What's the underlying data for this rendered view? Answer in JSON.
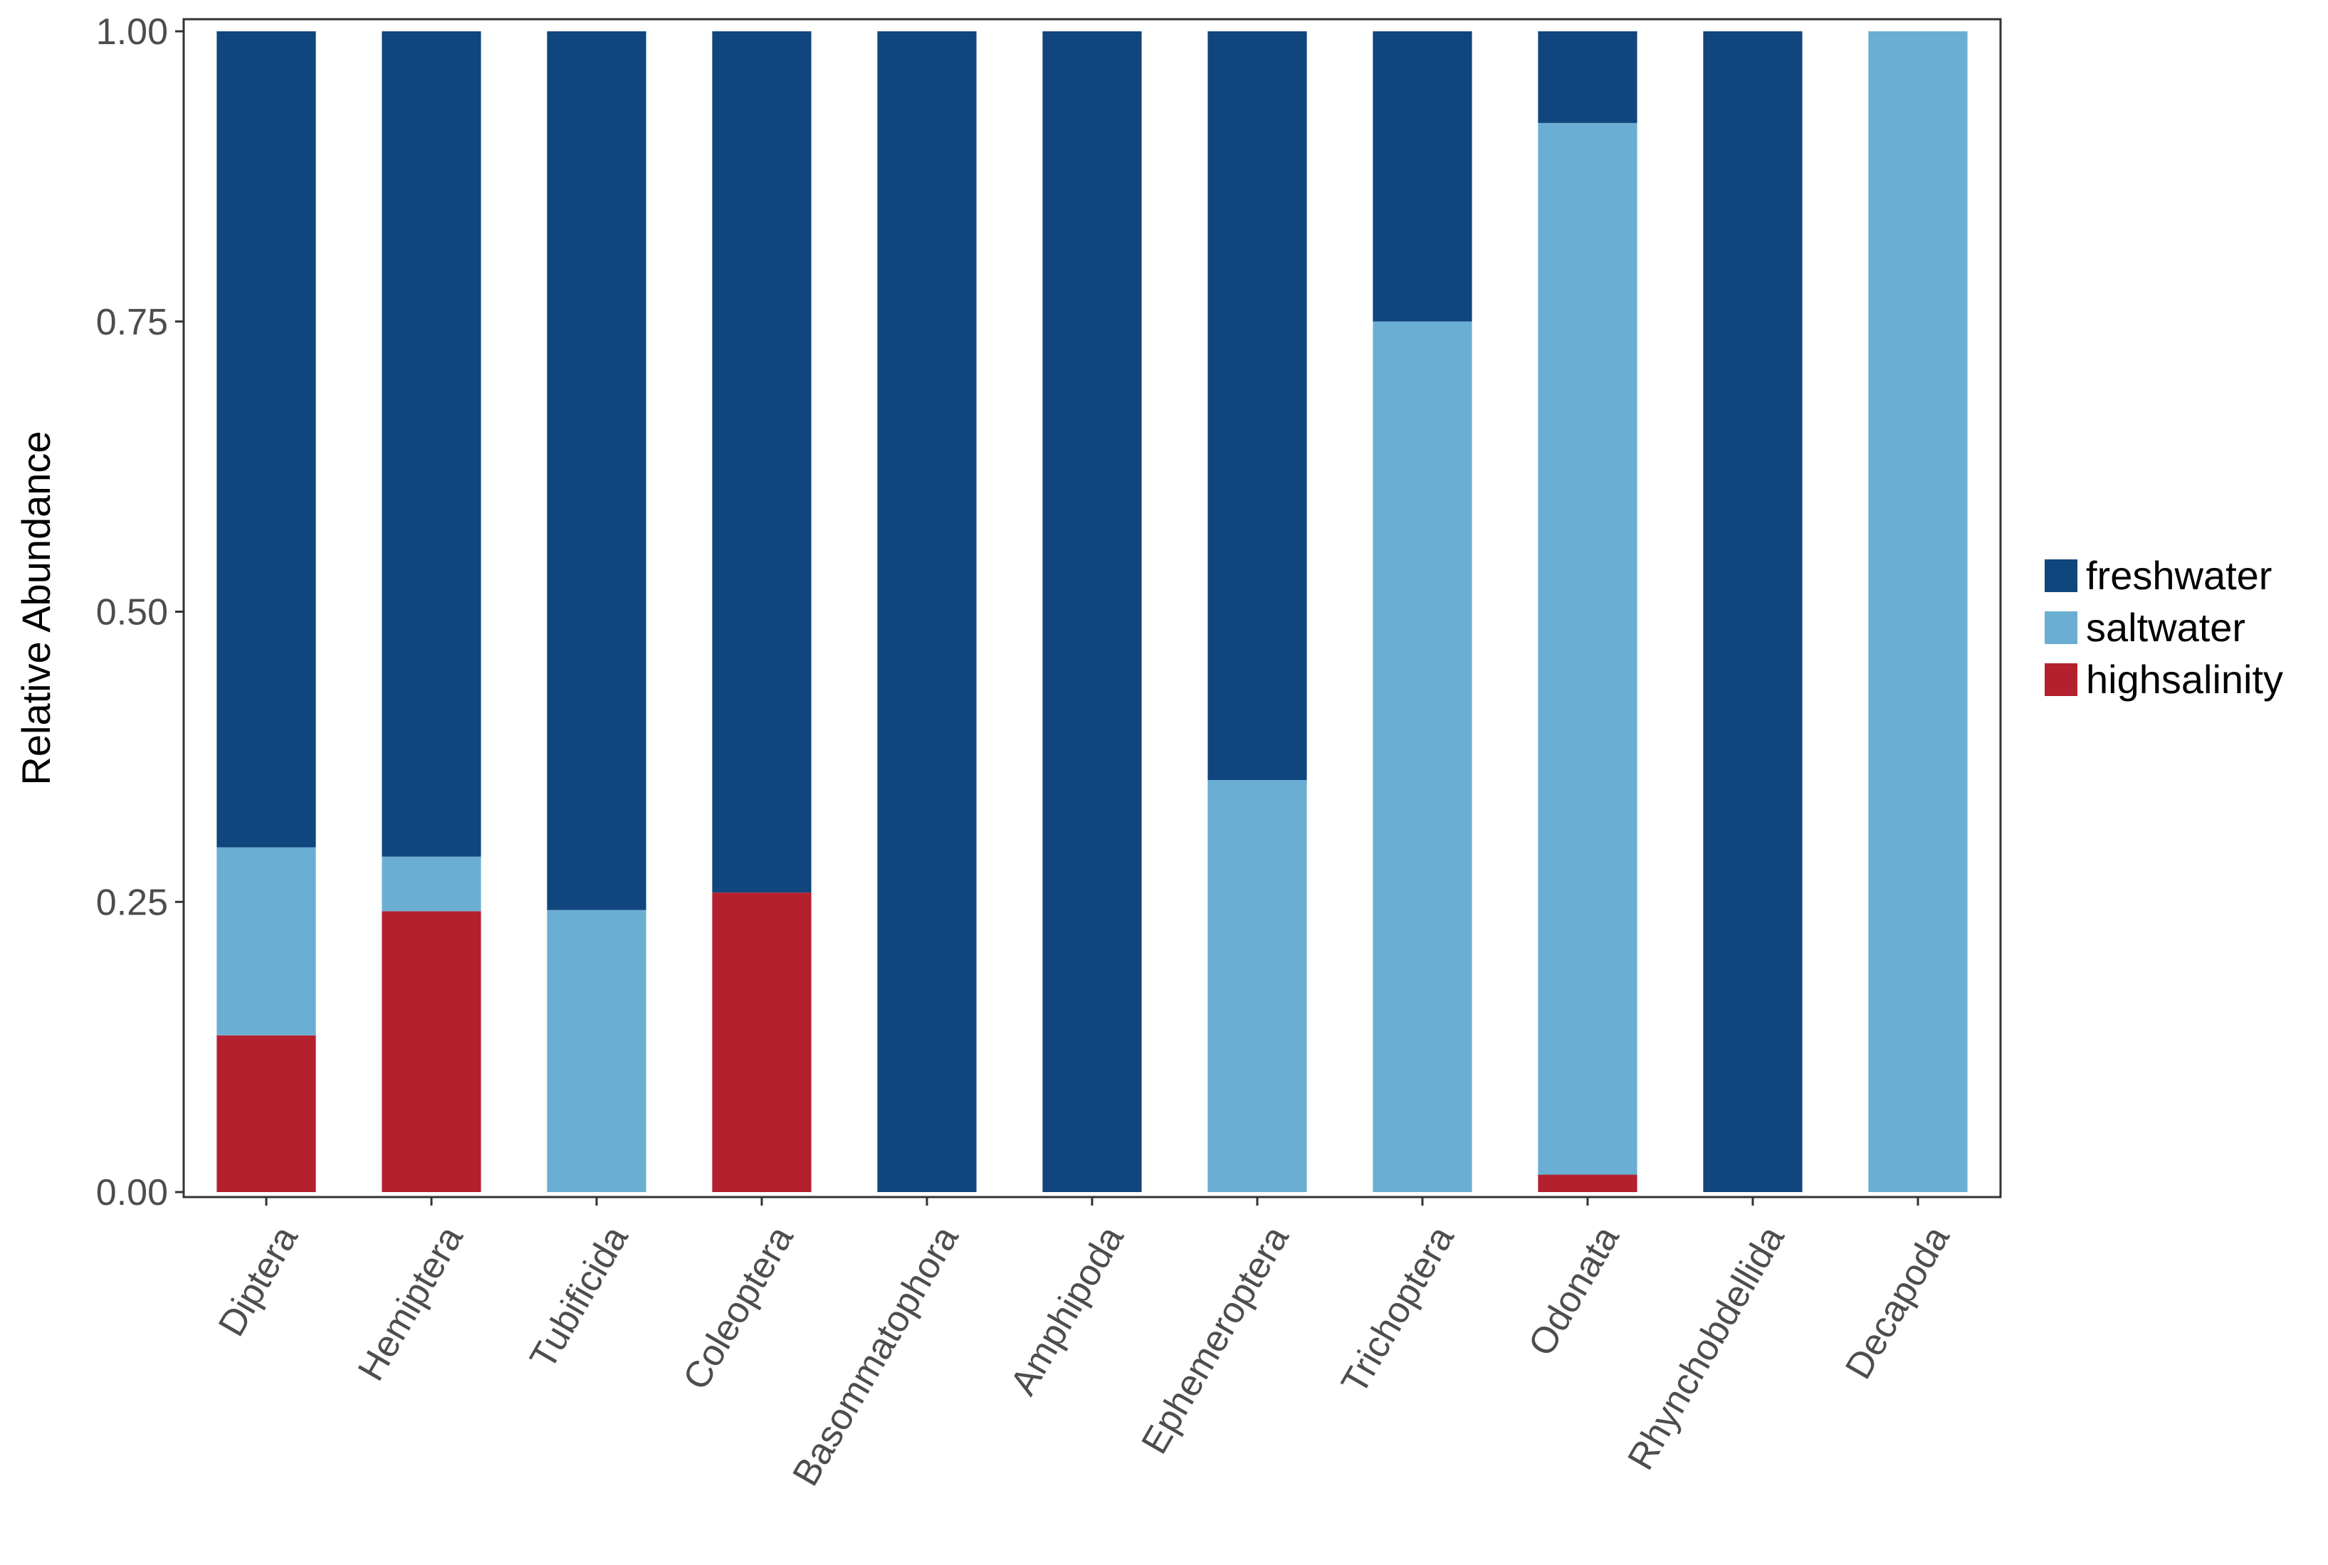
{
  "chart_data": {
    "type": "bar",
    "stacked": true,
    "title": "",
    "xlabel": "",
    "ylabel": "Relative Abundance",
    "ylim": [
      0,
      1
    ],
    "yticks": [
      "0.00",
      "0.25",
      "0.50",
      "0.75",
      "1.00"
    ],
    "ytick_values": [
      0,
      0.25,
      0.5,
      0.75,
      1.0
    ],
    "grid": false,
    "legend_position": "right",
    "categories": [
      "Diptera",
      "Hemiptera",
      "Tubificida",
      "Coleoptera",
      "Basommatophora",
      "Amphipoda",
      "Ephemeroptera",
      "Trichoptera",
      "Odonata",
      "Rhynchobdellida",
      "Decapoda"
    ],
    "series": [
      {
        "name": "freshwater",
        "color": "#11457d",
        "values": [
          0.703,
          0.711,
          0.757,
          0.742,
          1.0,
          1.0,
          0.645,
          0.25,
          0.079,
          1.0,
          0.0
        ]
      },
      {
        "name": "saltwater",
        "color": "#6baed3",
        "values": [
          0.162,
          0.047,
          0.243,
          0.0,
          0.0,
          0.0,
          0.355,
          0.75,
          0.906,
          0.0,
          1.0
        ]
      },
      {
        "name": "highsalinity",
        "color": "#b5202e",
        "values": [
          0.135,
          0.242,
          0.0,
          0.258,
          0.0,
          0.0,
          0.0,
          0.0,
          0.015,
          0.0,
          0.0
        ]
      }
    ]
  }
}
